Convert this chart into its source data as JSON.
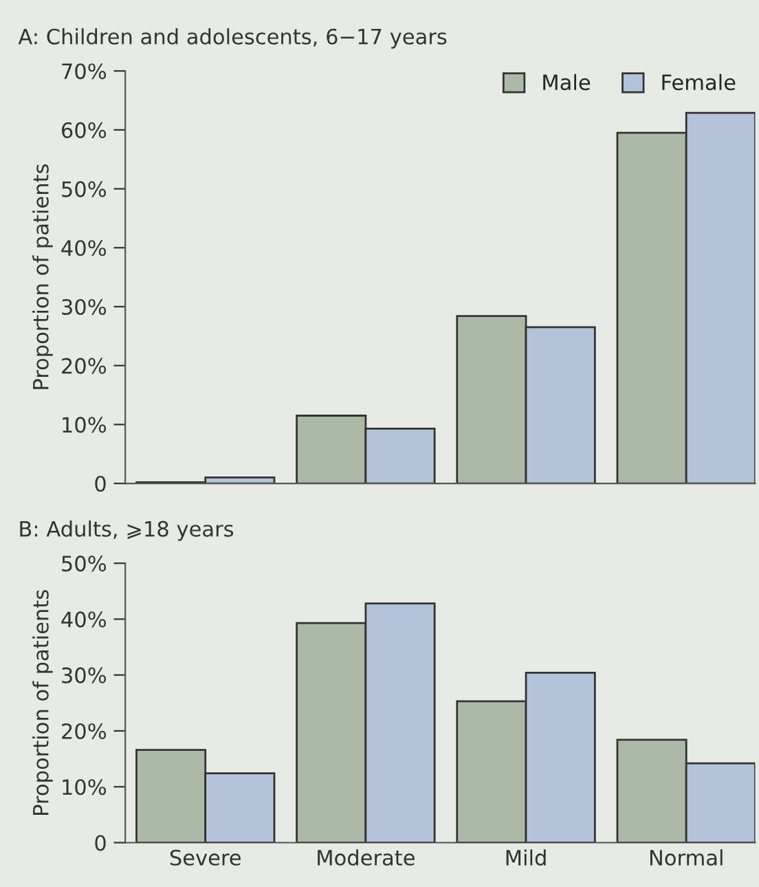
{
  "chart_data": [
    {
      "type": "bar",
      "title": "A: Children and adolescents, 6−17 years",
      "ylabel": "Proportion of patients",
      "categories": [
        null,
        null,
        null,
        null
      ],
      "series": [
        {
          "name": "Male",
          "color": "#adb9a7",
          "values": [
            0.2,
            11.5,
            28.4,
            59.5
          ]
        },
        {
          "name": "Female",
          "color": "#b3c3da",
          "values": [
            1.0,
            9.3,
            26.5,
            62.9
          ]
        }
      ],
      "ylim": [
        0,
        70
      ],
      "yticks": [
        0,
        {
          "value": 10,
          "label": "10%"
        },
        {
          "value": 20,
          "label": "20%"
        },
        {
          "value": 30,
          "label": "30%"
        },
        {
          "value": 40,
          "label": "40%"
        },
        {
          "value": 50,
          "label": "50%"
        },
        {
          "value": 60,
          "label": "60%"
        },
        {
          "value": 70,
          "label": "70%"
        }
      ],
      "tick_labels": "y",
      "legend": "top right",
      "grid": false
    },
    {
      "type": "bar",
      "title": "B: Adults, ⩾18 years",
      "ylabel": "Proportion of patients",
      "categories": [
        "Severe",
        "Moderate",
        "Mild",
        "Normal"
      ],
      "series": [
        {
          "color": "#adb9a7",
          "values": [
            16.6,
            39.3,
            25.3,
            18.4
          ]
        },
        {
          "color": "#b3c3da",
          "values": [
            12.4,
            42.8,
            30.4,
            14.2
          ]
        }
      ],
      "ylim": [
        0,
        50
      ],
      "yticks": [
        0,
        {
          "value": 10,
          "label": "10%"
        },
        {
          "value": 20,
          "label": "20%"
        },
        {
          "value": 30,
          "label": "30%"
        },
        {
          "value": 40,
          "label": "40%"
        },
        {
          "value": 50,
          "label": "50%"
        }
      ],
      "legend": false,
      "grid": false
    }
  ]
}
